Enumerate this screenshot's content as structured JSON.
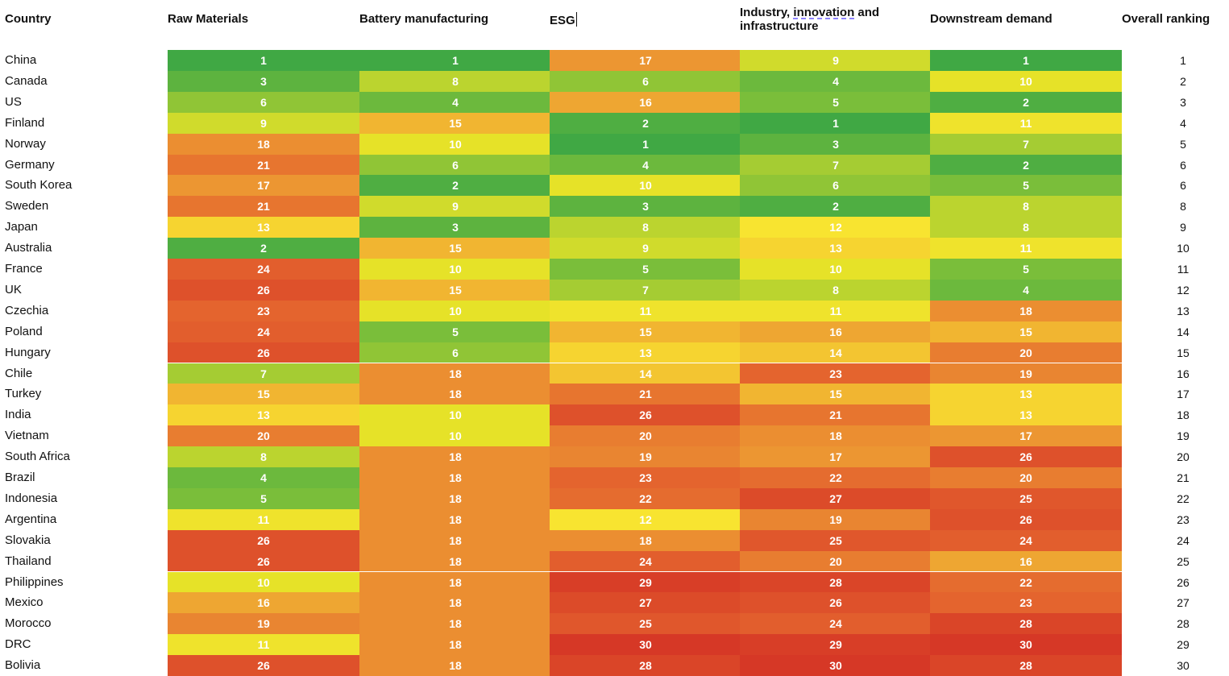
{
  "chart_data": {
    "type": "heatmap",
    "title": "",
    "row_header": "Country",
    "columns": [
      "Raw Materials",
      "Battery manufacturing",
      "ESG",
      "Industry, innovation and infrastructure",
      "Downstream demand"
    ],
    "overall_header": "Overall ranking",
    "rows": [
      {
        "country": "China",
        "values": [
          1,
          1,
          17,
          9,
          1
        ],
        "overall": 1
      },
      {
        "country": "Canada",
        "values": [
          3,
          8,
          6,
          4,
          10
        ],
        "overall": 2
      },
      {
        "country": "US",
        "values": [
          6,
          4,
          16,
          5,
          2
        ],
        "overall": 3
      },
      {
        "country": "Finland",
        "values": [
          9,
          15,
          2,
          1,
          11
        ],
        "overall": 4
      },
      {
        "country": "Norway",
        "values": [
          18,
          10,
          1,
          3,
          7
        ],
        "overall": 5
      },
      {
        "country": "Germany",
        "values": [
          21,
          6,
          4,
          7,
          2
        ],
        "overall": 6
      },
      {
        "country": "South Korea",
        "values": [
          17,
          2,
          10,
          6,
          5
        ],
        "overall": 6
      },
      {
        "country": "Sweden",
        "values": [
          21,
          9,
          3,
          2,
          8
        ],
        "overall": 8
      },
      {
        "country": "Japan",
        "values": [
          13,
          3,
          8,
          12,
          8
        ],
        "overall": 9
      },
      {
        "country": "Australia",
        "values": [
          2,
          15,
          9,
          13,
          11
        ],
        "overall": 10
      },
      {
        "country": "France",
        "values": [
          24,
          10,
          5,
          10,
          5
        ],
        "overall": 11
      },
      {
        "country": "UK",
        "values": [
          26,
          15,
          7,
          8,
          4
        ],
        "overall": 12
      },
      {
        "country": "Czechia",
        "values": [
          23,
          10,
          11,
          11,
          18
        ],
        "overall": 13
      },
      {
        "country": "Poland",
        "values": [
          24,
          5,
          15,
          16,
          15
        ],
        "overall": 14
      },
      {
        "country": "Hungary",
        "values": [
          26,
          6,
          13,
          14,
          20
        ],
        "overall": 15
      },
      {
        "country": "Chile",
        "values": [
          7,
          18,
          14,
          23,
          19
        ],
        "overall": 16
      },
      {
        "country": "Turkey",
        "values": [
          15,
          18,
          21,
          15,
          13
        ],
        "overall": 17
      },
      {
        "country": "India",
        "values": [
          13,
          10,
          26,
          21,
          13
        ],
        "overall": 18
      },
      {
        "country": "Vietnam",
        "values": [
          20,
          10,
          20,
          18,
          17
        ],
        "overall": 19
      },
      {
        "country": "South Africa",
        "values": [
          8,
          18,
          19,
          17,
          26
        ],
        "overall": 20
      },
      {
        "country": "Brazil",
        "values": [
          4,
          18,
          23,
          22,
          20
        ],
        "overall": 21
      },
      {
        "country": "Indonesia",
        "values": [
          5,
          18,
          22,
          27,
          25
        ],
        "overall": 22
      },
      {
        "country": "Argentina",
        "values": [
          11,
          18,
          12,
          19,
          26
        ],
        "overall": 23
      },
      {
        "country": "Slovakia",
        "values": [
          26,
          18,
          18,
          25,
          24
        ],
        "overall": 24
      },
      {
        "country": "Thailand",
        "values": [
          26,
          18,
          24,
          20,
          16
        ],
        "overall": 25
      },
      {
        "country": "Philippines",
        "values": [
          10,
          18,
          29,
          28,
          22
        ],
        "overall": 26
      },
      {
        "country": "Mexico",
        "values": [
          16,
          18,
          27,
          26,
          23
        ],
        "overall": 27
      },
      {
        "country": "Morocco",
        "values": [
          19,
          18,
          25,
          24,
          28
        ],
        "overall": 28
      },
      {
        "country": "DRC",
        "values": [
          11,
          18,
          30,
          29,
          30
        ],
        "overall": 29
      },
      {
        "country": "Bolivia",
        "values": [
          26,
          18,
          28,
          30,
          28
        ],
        "overall": 30
      }
    ]
  },
  "header": {
    "country": "Country",
    "raw_materials": "Raw Materials",
    "battery": "Battery manufacturing",
    "esg": "ESG",
    "industry_line1_pre": "Industry, ",
    "industry_line1_word": "innovation",
    "industry_line1_post": " and",
    "industry_line2": "infrastructure",
    "downstream": "Downstream demand",
    "overall": "Overall ranking"
  }
}
